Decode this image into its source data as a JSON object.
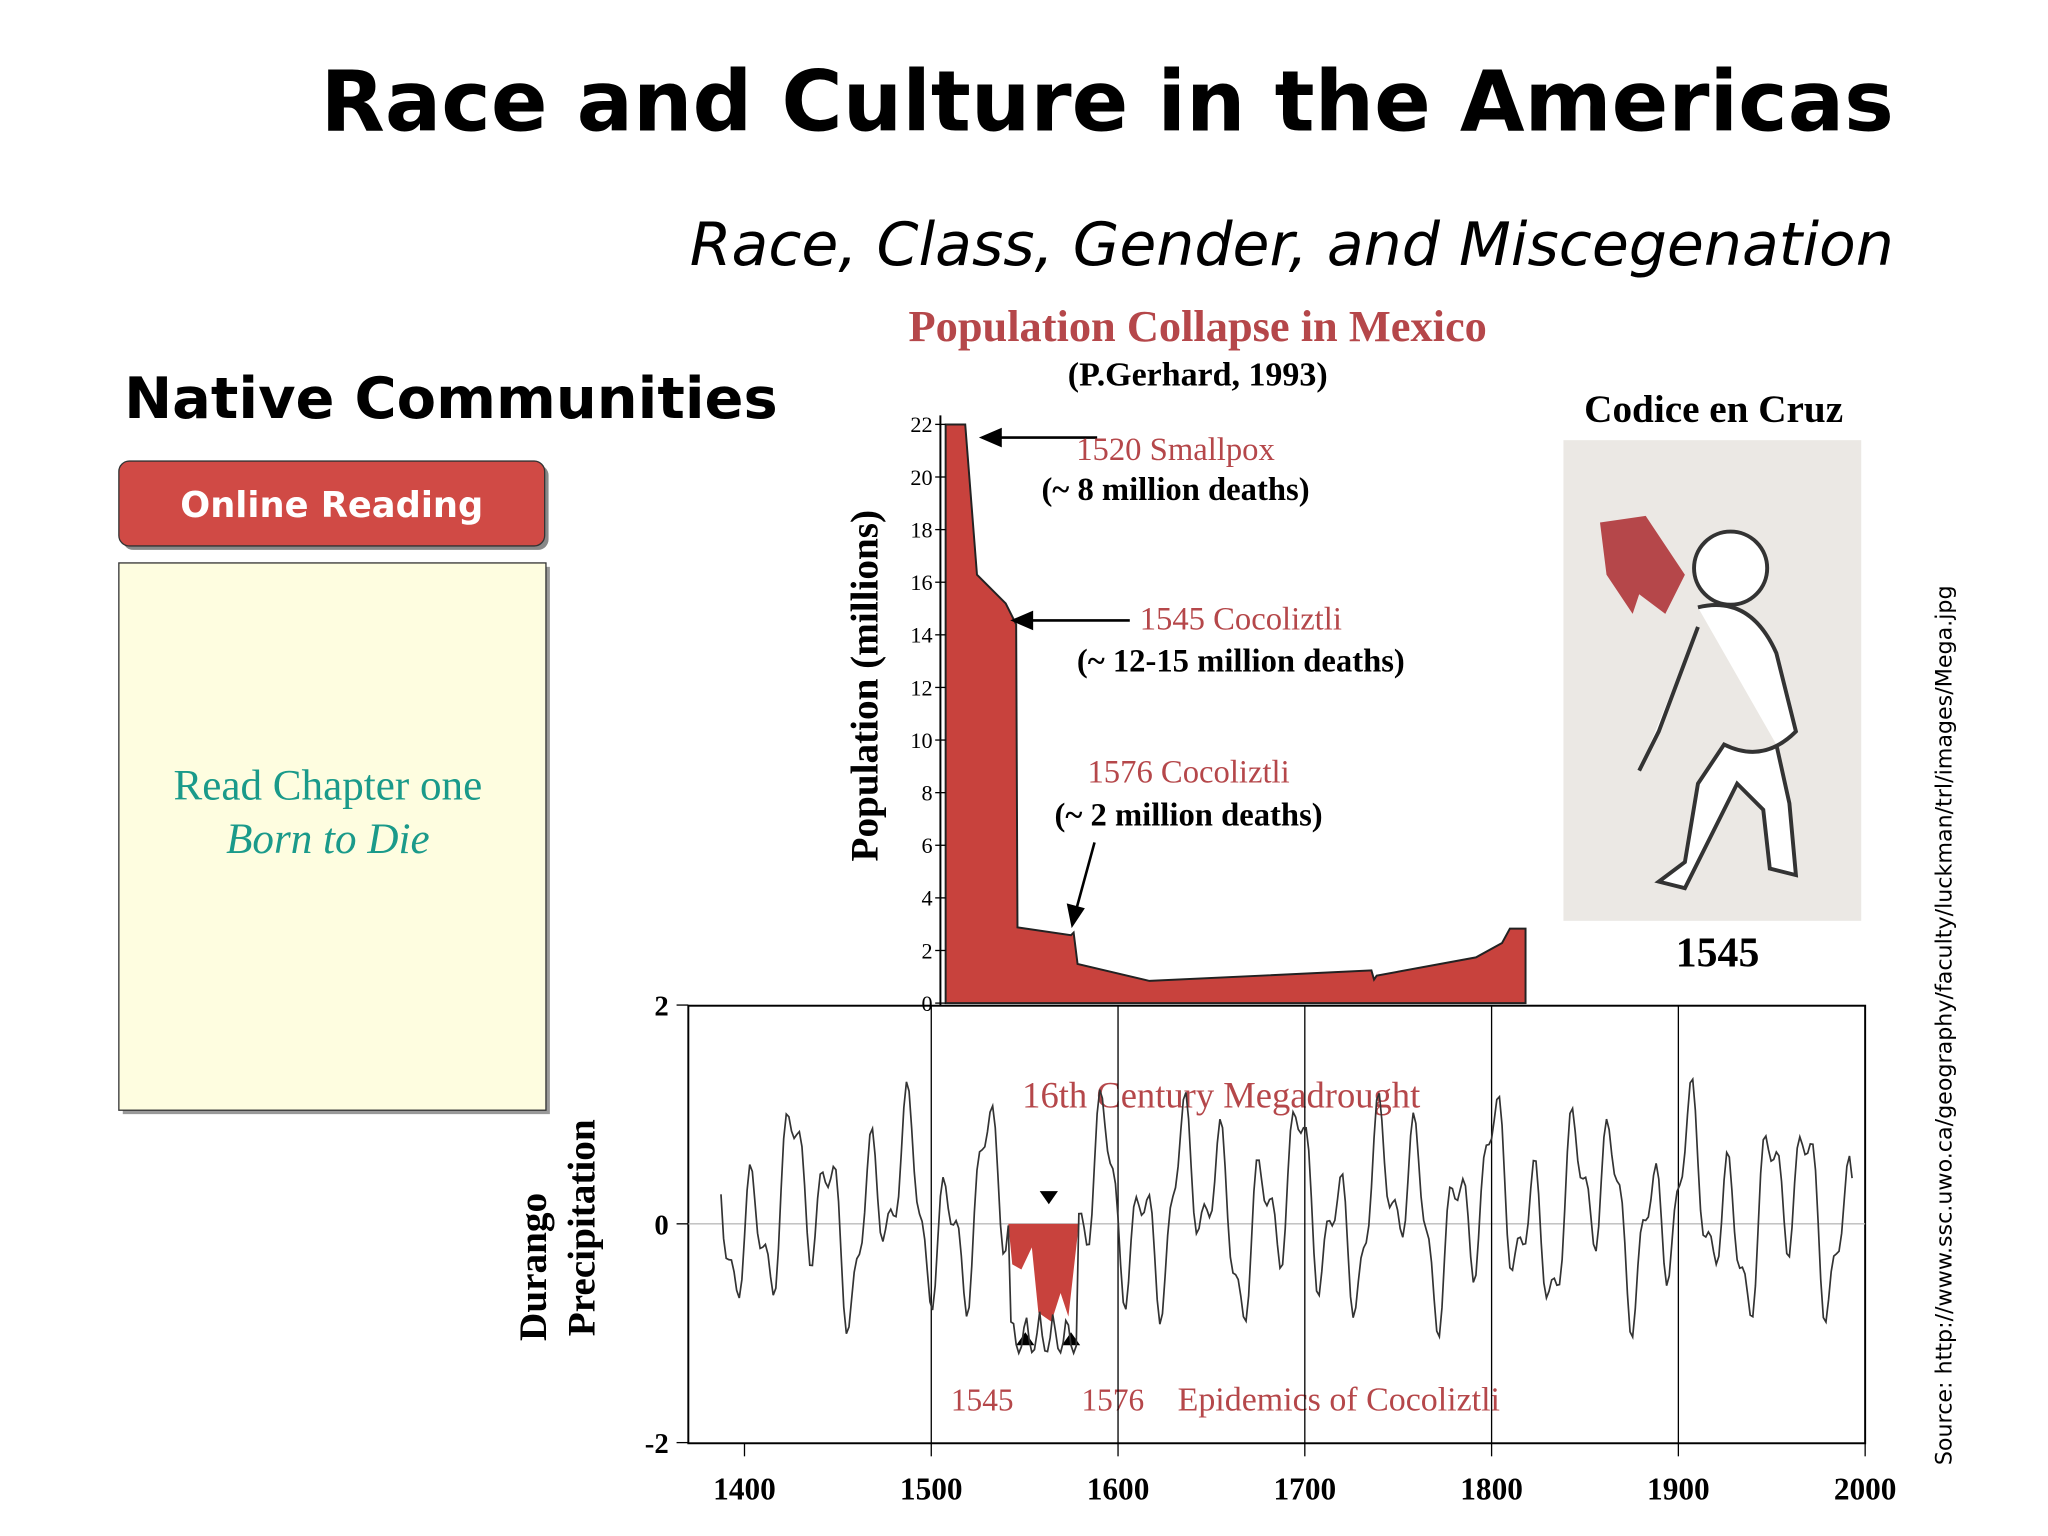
{
  "header": {
    "title": "Race and Culture in the Americas",
    "subtitle": "Race, Class, Gender, and Miscegenation"
  },
  "section": "Native Communities",
  "button": "Online Reading",
  "reading": {
    "line1": "Read Chapter one",
    "line2": "Born to Die"
  },
  "figure": {
    "title": "Population Collapse in Mexico",
    "credit": "(P.Gerhard, 1993)",
    "y_label": "Population (millions)",
    "population_ticks": [
      0,
      2,
      4,
      6,
      8,
      10,
      12,
      14,
      16,
      18,
      20,
      22
    ],
    "annotations": [
      "1520 Smallpox",
      "(~ 8 million deaths)",
      "1545 Cocoliztli",
      "(~ 12-15 million deaths)",
      "1576 Cocoliztli",
      "(~ 2 million deaths)"
    ],
    "lower_label_1": "Durango",
    "lower_label_2": "Precipitation",
    "precip_ticks": [
      2,
      0,
      -2
    ],
    "year_ticks": [
      1400,
      1500,
      1600,
      1700,
      1800,
      1900,
      2000
    ],
    "megadrought": "16th Century Megadrought",
    "epidemic_years": [
      "1545",
      "1576"
    ],
    "epidemics": "Epidemics of Cocoliztli",
    "codex_title": "Codice en Cruz",
    "codex_year": "1545"
  },
  "source": "Source: http://www.ssc.uwo.ca/geography/faculty/luckman/trl/images/Mega.jpg"
}
